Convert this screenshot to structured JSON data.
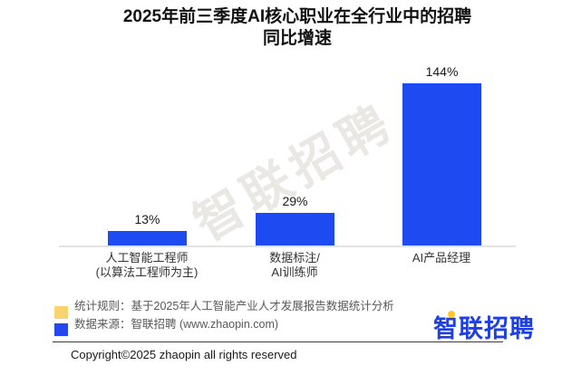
{
  "title": {
    "line1": "2025年前三季度AI核心职业在全行业中的招聘",
    "line2": "同比增速"
  },
  "watermark": {
    "text": "智联招聘"
  },
  "chart_data": {
    "type": "bar",
    "title": "2025年前三季度AI核心职业在全行业中的招聘同比增速",
    "categories": [
      "人工智能工程师(以算法工程师为主)",
      "数据标注/AI训练师",
      "AI产品经理"
    ],
    "categories_lines": [
      [
        "人工智能工程师",
        "(以算法工程师为主)"
      ],
      [
        "数据标注/",
        "AI训练师"
      ],
      [
        "AI产品经理",
        ""
      ]
    ],
    "values": [
      13,
      29,
      144
    ],
    "value_labels": [
      "13%",
      "29%",
      "144%"
    ],
    "unit": "%",
    "ylim": [
      0,
      160
    ],
    "grid": false,
    "legend": false,
    "bar_color": "#1d4af1",
    "axis_line_color": "#e3e3e3"
  },
  "footer": {
    "notes": [
      {
        "swatch_color": "#f9d36f",
        "text": "统计规则：基于2025年人工智能产业人才发展报告数据统计分析"
      },
      {
        "swatch_color": "#2448f0",
        "text": "数据来源：智联招聘 (www.zhaopin.com)"
      }
    ],
    "logo_text": "智联招聘",
    "logo_color": "#1e3fe6",
    "logo_accent_color": "#ffc62e",
    "copyright": "Copyright©2025 zhaopin all rights reserved"
  }
}
